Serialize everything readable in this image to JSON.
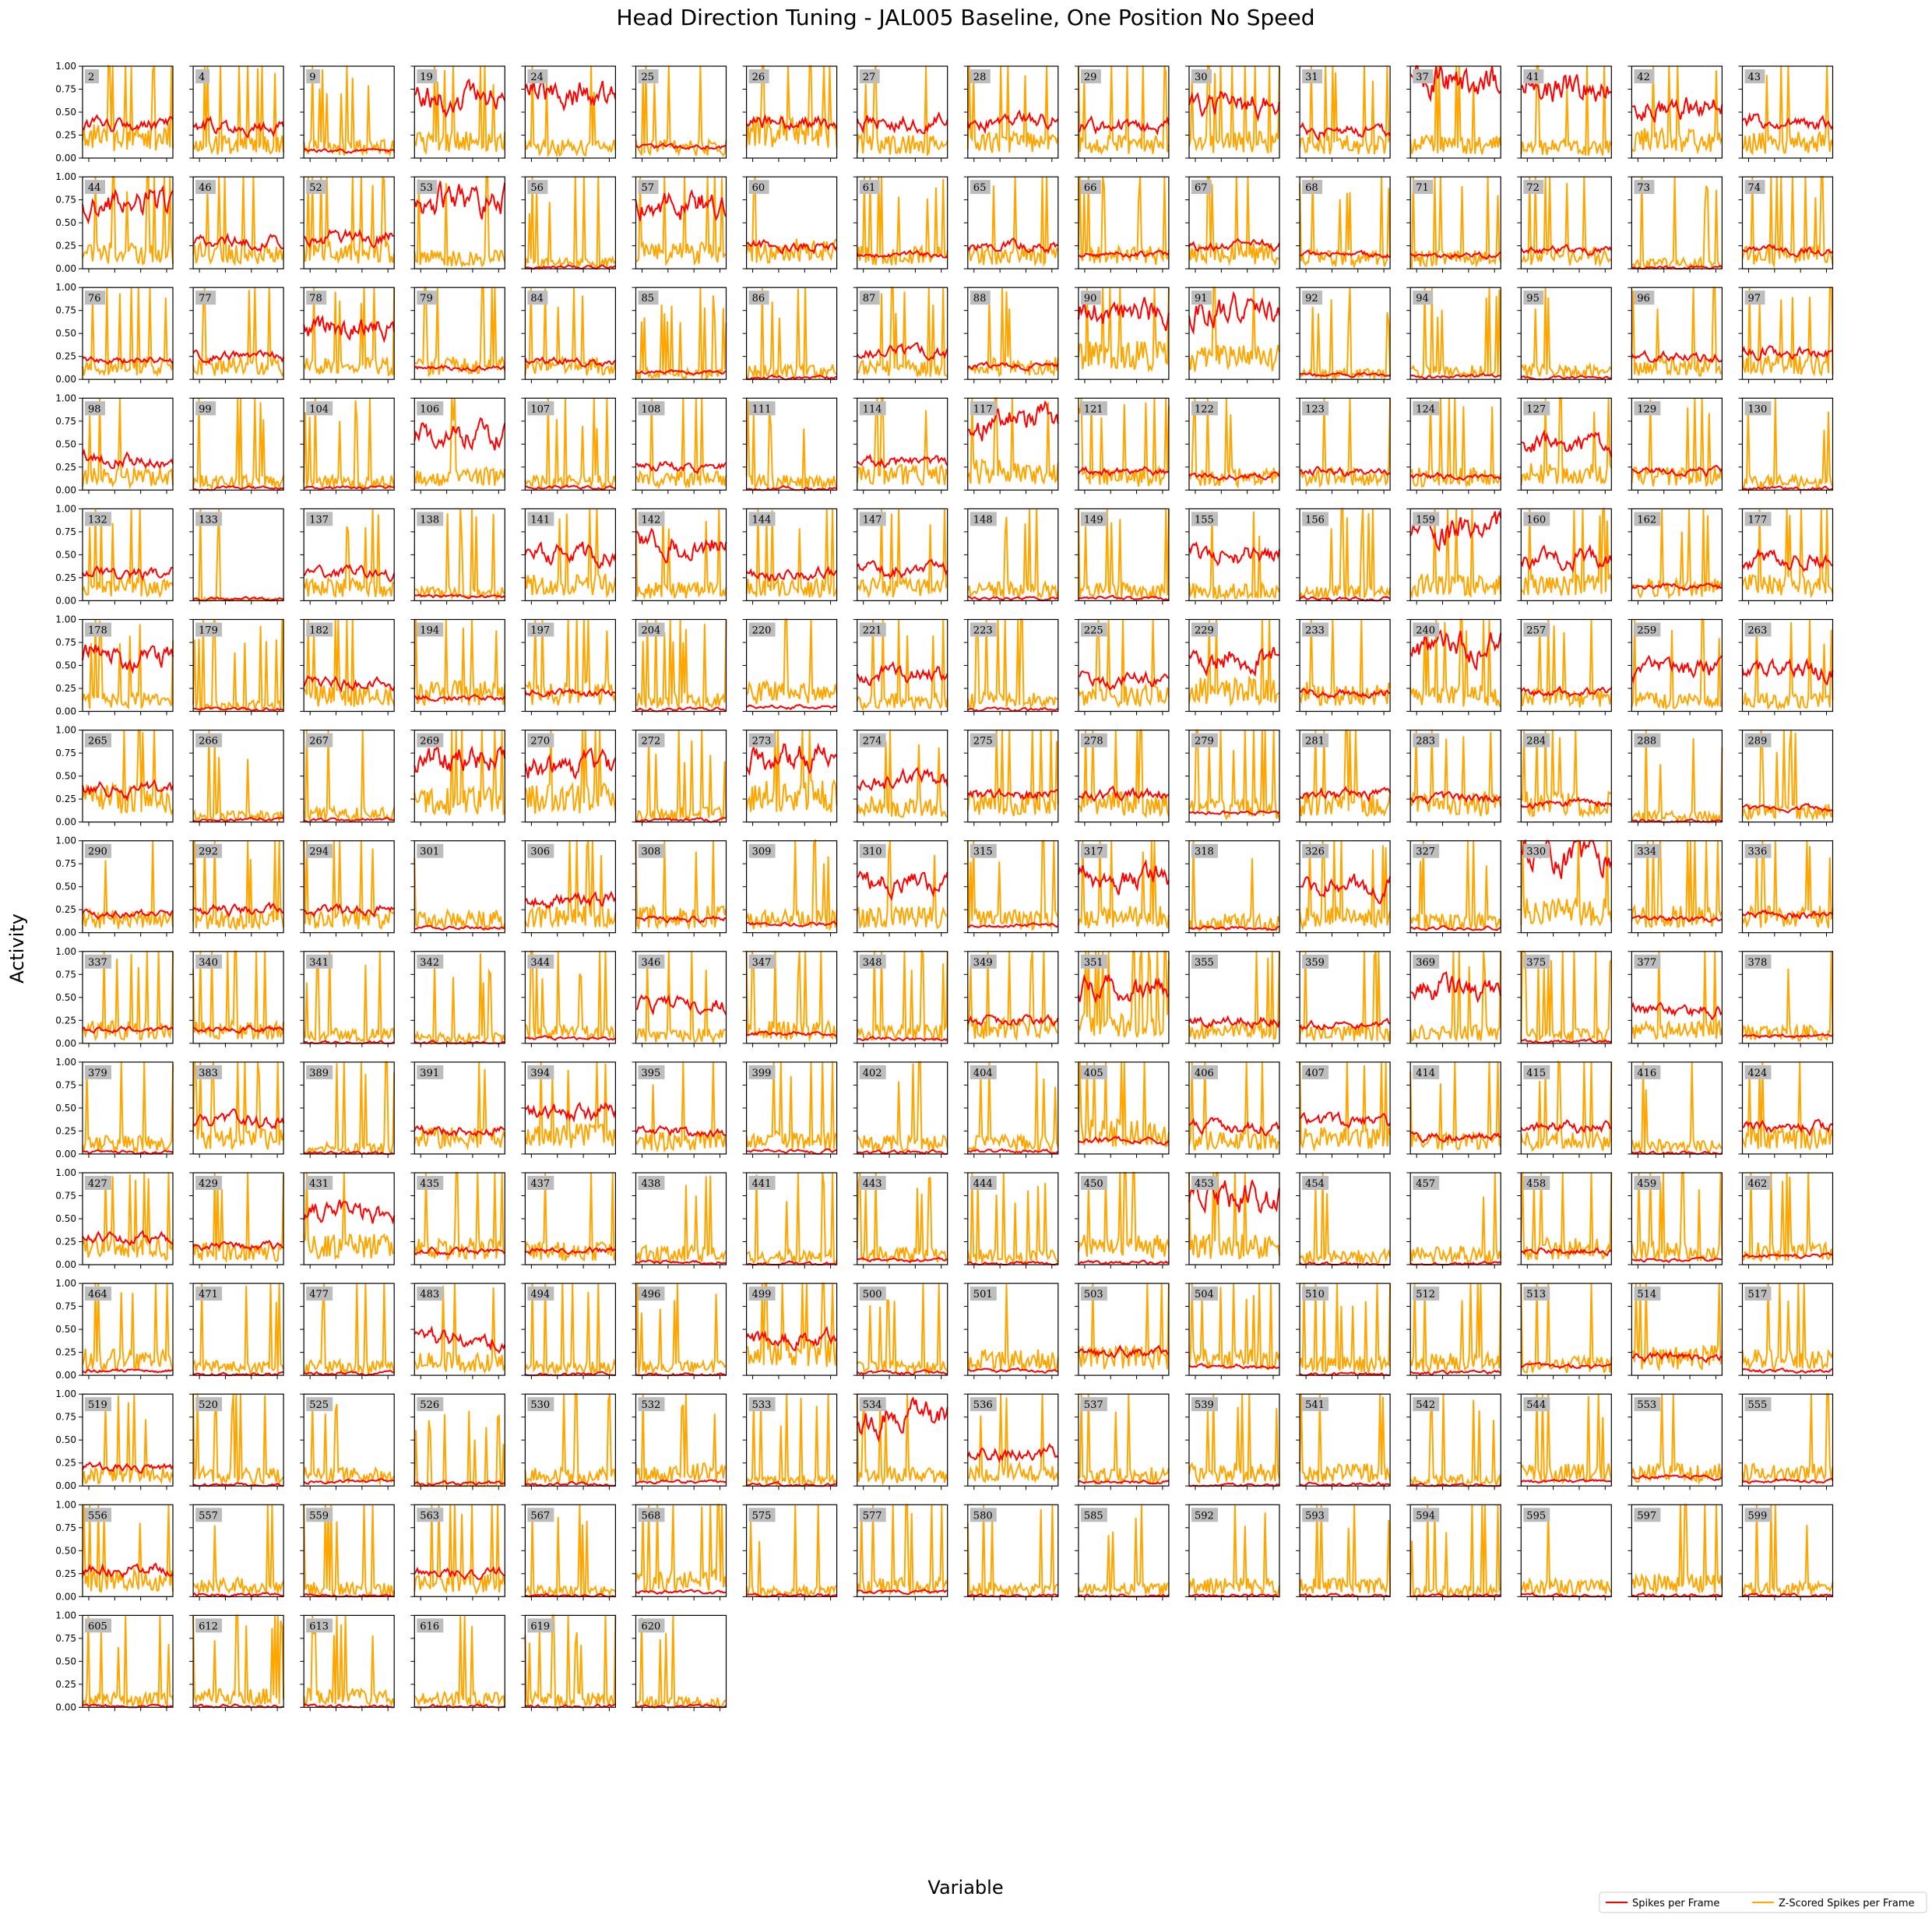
{
  "figure": {
    "title": "Head Direction Tuning - JAL005 Baseline, One Position No Speed",
    "xlabel": "Variable",
    "ylabel": "Activity"
  },
  "legend": {
    "placement": "bottom-right",
    "items": [
      {
        "label": "Spikes per Frame",
        "color": "#ff0000"
      },
      {
        "label": "Z-Scored Spikes per Frame",
        "color": "#ffa500"
      }
    ]
  },
  "chart_data": {
    "type": "line",
    "layout": "small-multiples",
    "ylim": [
      0,
      1
    ],
    "yticks": [
      "0.00",
      "0.25",
      "0.50",
      "0.75",
      "1.00"
    ],
    "grid": false,
    "series_names": [
      "Spikes per Frame",
      "Z-Scored Spikes per Frame"
    ],
    "colors": {
      "spikes": "#ff0000",
      "zscored": "#ffa500"
    },
    "panels": [
      {
        "id": "2",
        "spikes": 0.35,
        "z": 0.5
      },
      {
        "id": "4",
        "spikes": 0.35,
        "z": 0.35
      },
      {
        "id": "9",
        "spikes": 0.08,
        "z": 0.3
      },
      {
        "id": "19",
        "spikes": 0.65,
        "z": 0.4
      },
      {
        "id": "24",
        "spikes": 0.7,
        "z": 0.3
      },
      {
        "id": "25",
        "spikes": 0.12,
        "z": 0.3
      },
      {
        "id": "26",
        "spikes": 0.4,
        "z": 0.6
      },
      {
        "id": "27",
        "spikes": 0.4,
        "z": 0.35
      },
      {
        "id": "28",
        "spikes": 0.4,
        "z": 0.4
      },
      {
        "id": "29",
        "spikes": 0.35,
        "z": 0.35
      },
      {
        "id": "30",
        "spikes": 0.6,
        "z": 0.4
      },
      {
        "id": "31",
        "spikes": 0.3,
        "z": 0.35
      },
      {
        "id": "37",
        "spikes": 0.85,
        "z": 0.35
      },
      {
        "id": "41",
        "spikes": 0.8,
        "z": 0.3
      },
      {
        "id": "42",
        "spikes": 0.55,
        "z": 0.45
      },
      {
        "id": "43",
        "spikes": 0.4,
        "z": 0.4
      },
      {
        "id": "44",
        "spikes": 0.7,
        "z": 0.4
      },
      {
        "id": "46",
        "spikes": 0.3,
        "z": 0.4
      },
      {
        "id": "52",
        "spikes": 0.35,
        "z": 0.4
      },
      {
        "id": "53",
        "spikes": 0.75,
        "z": 0.3
      },
      {
        "id": "56",
        "spikes": 0.02,
        "z": 0.2
      },
      {
        "id": "57",
        "spikes": 0.7,
        "z": 0.4
      },
      {
        "id": "60",
        "spikes": 0.25,
        "z": 0.45
      },
      {
        "id": "61",
        "spikes": 0.15,
        "z": 0.35
      },
      {
        "id": "65",
        "spikes": 0.25,
        "z": 0.35
      },
      {
        "id": "66",
        "spikes": 0.15,
        "z": 0.35
      },
      {
        "id": "67",
        "spikes": 0.25,
        "z": 0.4
      },
      {
        "id": "68",
        "spikes": 0.15,
        "z": 0.3
      },
      {
        "id": "71",
        "spikes": 0.15,
        "z": 0.3
      },
      {
        "id": "72",
        "spikes": 0.2,
        "z": 0.35
      },
      {
        "id": "73",
        "spikes": 0.01,
        "z": 0.2
      },
      {
        "id": "74",
        "spikes": 0.2,
        "z": 0.35
      },
      {
        "id": "76",
        "spikes": 0.2,
        "z": 0.35
      },
      {
        "id": "77",
        "spikes": 0.25,
        "z": 0.35
      },
      {
        "id": "78",
        "spikes": 0.55,
        "z": 0.35
      },
      {
        "id": "79",
        "spikes": 0.12,
        "z": 0.35
      },
      {
        "id": "84",
        "spikes": 0.2,
        "z": 0.35
      },
      {
        "id": "85",
        "spikes": 0.08,
        "z": 0.2
      },
      {
        "id": "86",
        "spikes": 0.02,
        "z": 0.25
      },
      {
        "id": "87",
        "spikes": 0.3,
        "z": 0.3
      },
      {
        "id": "88",
        "spikes": 0.15,
        "z": 0.35
      },
      {
        "id": "90",
        "spikes": 0.75,
        "z": 0.55
      },
      {
        "id": "91",
        "spikes": 0.75,
        "z": 0.5
      },
      {
        "id": "92",
        "spikes": 0.05,
        "z": 0.2
      },
      {
        "id": "94",
        "spikes": 0.03,
        "z": 0.25
      },
      {
        "id": "95",
        "spikes": 0.02,
        "z": 0.25
      },
      {
        "id": "96",
        "spikes": 0.25,
        "z": 0.35
      },
      {
        "id": "97",
        "spikes": 0.3,
        "z": 0.4
      },
      {
        "id": "98",
        "spikes": 0.35,
        "z": 0.35
      },
      {
        "id": "99",
        "spikes": 0.02,
        "z": 0.25
      },
      {
        "id": "104",
        "spikes": 0.03,
        "z": 0.25
      },
      {
        "id": "106",
        "spikes": 0.6,
        "z": 0.35
      },
      {
        "id": "107",
        "spikes": 0.03,
        "z": 0.25
      },
      {
        "id": "108",
        "spikes": 0.25,
        "z": 0.3
      },
      {
        "id": "111",
        "spikes": 0.02,
        "z": 0.25
      },
      {
        "id": "114",
        "spikes": 0.3,
        "z": 0.4
      },
      {
        "id": "117",
        "spikes": 0.75,
        "z": 0.45
      },
      {
        "id": "121",
        "spikes": 0.2,
        "z": 0.35
      },
      {
        "id": "122",
        "spikes": 0.15,
        "z": 0.35
      },
      {
        "id": "123",
        "spikes": 0.2,
        "z": 0.35
      },
      {
        "id": "124",
        "spikes": 0.15,
        "z": 0.35
      },
      {
        "id": "127",
        "spikes": 0.5,
        "z": 0.4
      },
      {
        "id": "129",
        "spikes": 0.2,
        "z": 0.35
      },
      {
        "id": "130",
        "spikes": 0.02,
        "z": 0.25
      },
      {
        "id": "132",
        "spikes": 0.3,
        "z": 0.35
      },
      {
        "id": "133",
        "spikes": 0.02,
        "z": 0.1
      },
      {
        "id": "137",
        "spikes": 0.3,
        "z": 0.35
      },
      {
        "id": "138",
        "spikes": 0.05,
        "z": 0.25
      },
      {
        "id": "141",
        "spikes": 0.5,
        "z": 0.4
      },
      {
        "id": "142",
        "spikes": 0.65,
        "z": 0.3
      },
      {
        "id": "144",
        "spikes": 0.3,
        "z": 0.35
      },
      {
        "id": "147",
        "spikes": 0.35,
        "z": 0.35
      },
      {
        "id": "148",
        "spikes": 0.03,
        "z": 0.3
      },
      {
        "id": "149",
        "spikes": 0.03,
        "z": 0.3
      },
      {
        "id": "155",
        "spikes": 0.5,
        "z": 0.3
      },
      {
        "id": "156",
        "spikes": 0.02,
        "z": 0.25
      },
      {
        "id": "159",
        "spikes": 0.75,
        "z": 0.4
      },
      {
        "id": "160",
        "spikes": 0.45,
        "z": 0.4
      },
      {
        "id": "162",
        "spikes": 0.15,
        "z": 0.35
      },
      {
        "id": "177",
        "spikes": 0.45,
        "z": 0.4
      },
      {
        "id": "178",
        "spikes": 0.6,
        "z": 0.3
      },
      {
        "id": "179",
        "spikes": 0.02,
        "z": 0.2
      },
      {
        "id": "182",
        "spikes": 0.3,
        "z": 0.4
      },
      {
        "id": "194",
        "spikes": 0.15,
        "z": 0.45
      },
      {
        "id": "197",
        "spikes": 0.2,
        "z": 0.45
      },
      {
        "id": "204",
        "spikes": 0.02,
        "z": 0.3
      },
      {
        "id": "220",
        "spikes": 0.05,
        "z": 0.45
      },
      {
        "id": "221",
        "spikes": 0.4,
        "z": 0.3
      },
      {
        "id": "223",
        "spikes": 0.02,
        "z": 0.3
      },
      {
        "id": "225",
        "spikes": 0.35,
        "z": 0.4
      },
      {
        "id": "229",
        "spikes": 0.6,
        "z": 0.5
      },
      {
        "id": "233",
        "spikes": 0.2,
        "z": 0.45
      },
      {
        "id": "240",
        "spikes": 0.7,
        "z": 0.4
      },
      {
        "id": "257",
        "spikes": 0.2,
        "z": 0.35
      },
      {
        "id": "259",
        "spikes": 0.45,
        "z": 0.3
      },
      {
        "id": "263",
        "spikes": 0.45,
        "z": 0.3
      },
      {
        "id": "265",
        "spikes": 0.35,
        "z": 0.55
      },
      {
        "id": "266",
        "spikes": 0.03,
        "z": 0.2
      },
      {
        "id": "267",
        "spikes": 0.02,
        "z": 0.25
      },
      {
        "id": "269",
        "spikes": 0.7,
        "z": 0.5
      },
      {
        "id": "270",
        "spikes": 0.6,
        "z": 0.55
      },
      {
        "id": "272",
        "spikes": 0.02,
        "z": 0.25
      },
      {
        "id": "273",
        "spikes": 0.7,
        "z": 0.6
      },
      {
        "id": "274",
        "spikes": 0.45,
        "z": 0.4
      },
      {
        "id": "275",
        "spikes": 0.3,
        "z": 0.45
      },
      {
        "id": "278",
        "spikes": 0.3,
        "z": 0.45
      },
      {
        "id": "279",
        "spikes": 0.1,
        "z": 0.35
      },
      {
        "id": "281",
        "spikes": 0.3,
        "z": 0.45
      },
      {
        "id": "283",
        "spikes": 0.25,
        "z": 0.45
      },
      {
        "id": "284",
        "spikes": 0.2,
        "z": 0.45
      },
      {
        "id": "288",
        "spikes": 0.01,
        "z": 0.2
      },
      {
        "id": "289",
        "spikes": 0.15,
        "z": 0.3
      },
      {
        "id": "290",
        "spikes": 0.2,
        "z": 0.35
      },
      {
        "id": "292",
        "spikes": 0.25,
        "z": 0.35
      },
      {
        "id": "294",
        "spikes": 0.25,
        "z": 0.35
      },
      {
        "id": "301",
        "spikes": 0.05,
        "z": 0.35
      },
      {
        "id": "306",
        "spikes": 0.35,
        "z": 0.4
      },
      {
        "id": "308",
        "spikes": 0.15,
        "z": 0.4
      },
      {
        "id": "309",
        "spikes": 0.1,
        "z": 0.35
      },
      {
        "id": "310",
        "spikes": 0.55,
        "z": 0.4
      },
      {
        "id": "315",
        "spikes": 0.08,
        "z": 0.35
      },
      {
        "id": "317",
        "spikes": 0.6,
        "z": 0.4
      },
      {
        "id": "318",
        "spikes": 0.05,
        "z": 0.3
      },
      {
        "id": "326",
        "spikes": 0.5,
        "z": 0.4
      },
      {
        "id": "327",
        "spikes": 0.05,
        "z": 0.3
      },
      {
        "id": "330",
        "spikes": 0.85,
        "z": 0.5
      },
      {
        "id": "334",
        "spikes": 0.15,
        "z": 0.4
      },
      {
        "id": "336",
        "spikes": 0.2,
        "z": 0.4
      },
      {
        "id": "337",
        "spikes": 0.15,
        "z": 0.35
      },
      {
        "id": "340",
        "spikes": 0.15,
        "z": 0.35
      },
      {
        "id": "341",
        "spikes": 0.01,
        "z": 0.25
      },
      {
        "id": "342",
        "spikes": 0.01,
        "z": 0.2
      },
      {
        "id": "344",
        "spikes": 0.05,
        "z": 0.3
      },
      {
        "id": "346",
        "spikes": 0.4,
        "z": 0.25
      },
      {
        "id": "347",
        "spikes": 0.1,
        "z": 0.35
      },
      {
        "id": "348",
        "spikes": 0.05,
        "z": 0.3
      },
      {
        "id": "349",
        "spikes": 0.25,
        "z": 0.4
      },
      {
        "id": "351",
        "spikes": 0.6,
        "z": 0.45
      },
      {
        "id": "355",
        "spikes": 0.25,
        "z": 0.35
      },
      {
        "id": "359",
        "spikes": 0.2,
        "z": 0.3
      },
      {
        "id": "369",
        "spikes": 0.6,
        "z": 0.3
      },
      {
        "id": "375",
        "spikes": 0.02,
        "z": 0.25
      },
      {
        "id": "377",
        "spikes": 0.35,
        "z": 0.35
      },
      {
        "id": "378",
        "spikes": 0.08,
        "z": 0.3
      },
      {
        "id": "379",
        "spikes": 0.02,
        "z": 0.3
      },
      {
        "id": "383",
        "spikes": 0.35,
        "z": 0.4
      },
      {
        "id": "389",
        "spikes": 0.01,
        "z": 0.2
      },
      {
        "id": "391",
        "spikes": 0.25,
        "z": 0.4
      },
      {
        "id": "394",
        "spikes": 0.45,
        "z": 0.45
      },
      {
        "id": "395",
        "spikes": 0.25,
        "z": 0.35
      },
      {
        "id": "399",
        "spikes": 0.03,
        "z": 0.35
      },
      {
        "id": "402",
        "spikes": 0.02,
        "z": 0.3
      },
      {
        "id": "404",
        "spikes": 0.03,
        "z": 0.3
      },
      {
        "id": "405",
        "spikes": 0.15,
        "z": 0.5
      },
      {
        "id": "406",
        "spikes": 0.3,
        "z": 0.35
      },
      {
        "id": "407",
        "spikes": 0.35,
        "z": 0.4
      },
      {
        "id": "414",
        "spikes": 0.2,
        "z": 0.35
      },
      {
        "id": "415",
        "spikes": 0.3,
        "z": 0.35
      },
      {
        "id": "416",
        "spikes": 0.01,
        "z": 0.25
      },
      {
        "id": "424",
        "spikes": 0.3,
        "z": 0.4
      },
      {
        "id": "427",
        "spikes": 0.3,
        "z": 0.4
      },
      {
        "id": "429",
        "spikes": 0.2,
        "z": 0.35
      },
      {
        "id": "431",
        "spikes": 0.55,
        "z": 0.45
      },
      {
        "id": "435",
        "spikes": 0.15,
        "z": 0.4
      },
      {
        "id": "437",
        "spikes": 0.15,
        "z": 0.35
      },
      {
        "id": "438",
        "spikes": 0.03,
        "z": 0.3
      },
      {
        "id": "441",
        "spikes": 0.01,
        "z": 0.25
      },
      {
        "id": "443",
        "spikes": 0.05,
        "z": 0.3
      },
      {
        "id": "444",
        "spikes": 0.01,
        "z": 0.25
      },
      {
        "id": "450",
        "spikes": 0.02,
        "z": 0.45
      },
      {
        "id": "453",
        "spikes": 0.75,
        "z": 0.45
      },
      {
        "id": "454",
        "spikes": 0.01,
        "z": 0.25
      },
      {
        "id": "457",
        "spikes": 0.01,
        "z": 0.3
      },
      {
        "id": "458",
        "spikes": 0.15,
        "z": 0.4
      },
      {
        "id": "459",
        "spikes": 0.05,
        "z": 0.35
      },
      {
        "id": "462",
        "spikes": 0.1,
        "z": 0.35
      },
      {
        "id": "464",
        "spikes": 0.05,
        "z": 0.4
      },
      {
        "id": "471",
        "spikes": 0.01,
        "z": 0.25
      },
      {
        "id": "477",
        "spikes": 0.02,
        "z": 0.25
      },
      {
        "id": "483",
        "spikes": 0.4,
        "z": 0.35
      },
      {
        "id": "494",
        "spikes": 0.01,
        "z": 0.25
      },
      {
        "id": "496",
        "spikes": 0.01,
        "z": 0.25
      },
      {
        "id": "499",
        "spikes": 0.4,
        "z": 0.55
      },
      {
        "id": "500",
        "spikes": 0.03,
        "z": 0.25
      },
      {
        "id": "501",
        "spikes": 0.05,
        "z": 0.4
      },
      {
        "id": "503",
        "spikes": 0.25,
        "z": 0.45
      },
      {
        "id": "504",
        "spikes": 0.1,
        "z": 0.4
      },
      {
        "id": "510",
        "spikes": 0.01,
        "z": 0.3
      },
      {
        "id": "512",
        "spikes": 0.03,
        "z": 0.35
      },
      {
        "id": "513",
        "spikes": 0.1,
        "z": 0.3
      },
      {
        "id": "514",
        "spikes": 0.2,
        "z": 0.45
      },
      {
        "id": "517",
        "spikes": 0.05,
        "z": 0.4
      },
      {
        "id": "519",
        "spikes": 0.2,
        "z": 0.3
      },
      {
        "id": "520",
        "spikes": 0.01,
        "z": 0.3
      },
      {
        "id": "525",
        "spikes": 0.05,
        "z": 0.3
      },
      {
        "id": "526",
        "spikes": 0.03,
        "z": 0.05
      },
      {
        "id": "530",
        "spikes": 0.02,
        "z": 0.3
      },
      {
        "id": "532",
        "spikes": 0.05,
        "z": 0.35
      },
      {
        "id": "533",
        "spikes": 0.01,
        "z": 0.2
      },
      {
        "id": "534",
        "spikes": 0.75,
        "z": 0.3
      },
      {
        "id": "536",
        "spikes": 0.35,
        "z": 0.35
      },
      {
        "id": "537",
        "spikes": 0.05,
        "z": 0.3
      },
      {
        "id": "539",
        "spikes": 0.01,
        "z": 0.35
      },
      {
        "id": "541",
        "spikes": 0.02,
        "z": 0.35
      },
      {
        "id": "542",
        "spikes": 0.01,
        "z": 0.2
      },
      {
        "id": "544",
        "spikes": 0.05,
        "z": 0.35
      },
      {
        "id": "553",
        "spikes": 0.1,
        "z": 0.35
      },
      {
        "id": "555",
        "spikes": 0.05,
        "z": 0.35
      },
      {
        "id": "556",
        "spikes": 0.3,
        "z": 0.4
      },
      {
        "id": "557",
        "spikes": 0.02,
        "z": 0.3
      },
      {
        "id": "559",
        "spikes": 0.01,
        "z": 0.25
      },
      {
        "id": "563",
        "spikes": 0.25,
        "z": 0.35
      },
      {
        "id": "567",
        "spikes": 0.01,
        "z": 0.2
      },
      {
        "id": "568",
        "spikes": 0.05,
        "z": 0.4
      },
      {
        "id": "575",
        "spikes": 0.01,
        "z": 0.2
      },
      {
        "id": "577",
        "spikes": 0.05,
        "z": 0.3
      },
      {
        "id": "580",
        "spikes": 0.01,
        "z": 0.25
      },
      {
        "id": "585",
        "spikes": 0.01,
        "z": 0.25
      },
      {
        "id": "592",
        "spikes": 0.01,
        "z": 0.3
      },
      {
        "id": "593",
        "spikes": 0.01,
        "z": 0.3
      },
      {
        "id": "594",
        "spikes": 0.01,
        "z": 0.2
      },
      {
        "id": "595",
        "spikes": 0.01,
        "z": 0.3
      },
      {
        "id": "597",
        "spikes": 0.01,
        "z": 0.35
      },
      {
        "id": "599",
        "spikes": 0.01,
        "z": 0.25
      },
      {
        "id": "605",
        "spikes": 0.01,
        "z": 0.25
      },
      {
        "id": "612",
        "spikes": 0.01,
        "z": 0.3
      },
      {
        "id": "613",
        "spikes": 0.01,
        "z": 0.3
      },
      {
        "id": "616",
        "spikes": 0.01,
        "z": 0.25
      },
      {
        "id": "619",
        "spikes": 0.01,
        "z": 0.25
      },
      {
        "id": "620",
        "spikes": 0.01,
        "z": 0.2
      }
    ]
  }
}
